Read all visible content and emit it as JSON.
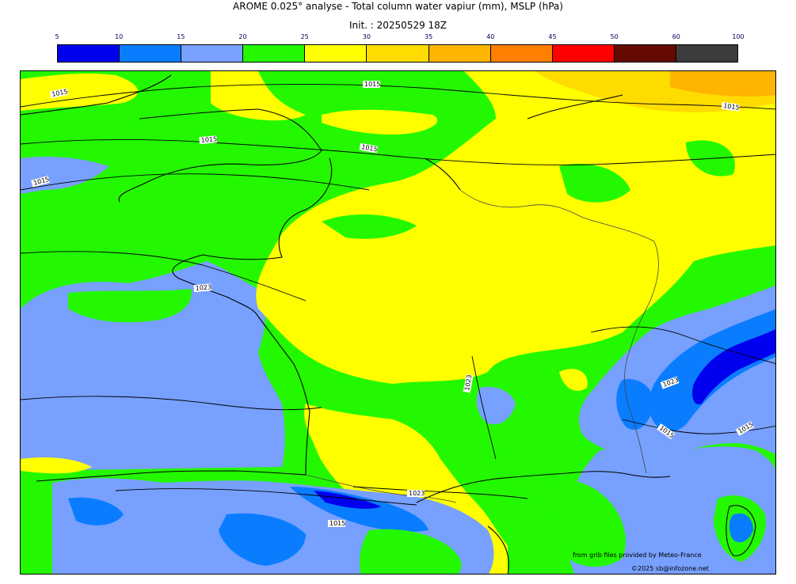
{
  "header": {
    "title": "AROME 0.025° analyse - Total column water vapiur (mm), MSLP (hPa)",
    "init": "Init. : 20250529 18Z"
  },
  "colorbar": {
    "ticks": [
      "5",
      "10",
      "15",
      "20",
      "25",
      "30",
      "35",
      "40",
      "45",
      "50",
      "60",
      "100"
    ],
    "colors": [
      "#0000ee",
      "#0a7dff",
      "#78a0ff",
      "#23f800",
      "#ffff00",
      "#ffdc00",
      "#ffb400",
      "#ff8000",
      "#ff0000",
      "#640a00",
      "#3c3c3c"
    ]
  },
  "isobars": {
    "labels": [
      {
        "name": "label-1015-nw",
        "text": "1015"
      },
      {
        "name": "label-1015-top",
        "text": "1015"
      },
      {
        "name": "label-1015-ne",
        "text": "1015"
      },
      {
        "name": "label-1015-channel",
        "text": "1015"
      },
      {
        "name": "label-1015-normandy",
        "text": "1015"
      },
      {
        "name": "label-1015-west",
        "text": "1015"
      },
      {
        "name": "label-1023-brittany",
        "text": "1023"
      },
      {
        "name": "label-1023-center",
        "text": "1023"
      },
      {
        "name": "label-1023-alps",
        "text": "1023"
      },
      {
        "name": "label-1015-alps-south",
        "text": "1015"
      },
      {
        "name": "label-1015-east",
        "text": "1015"
      },
      {
        "name": "label-1023-pyrenees",
        "text": "1023"
      },
      {
        "name": "label-1015-spain",
        "text": "1015"
      }
    ]
  },
  "credits": {
    "source": "from grib files provided by Meteo-France",
    "copyright": "©2025 sb@infozone.net"
  }
}
